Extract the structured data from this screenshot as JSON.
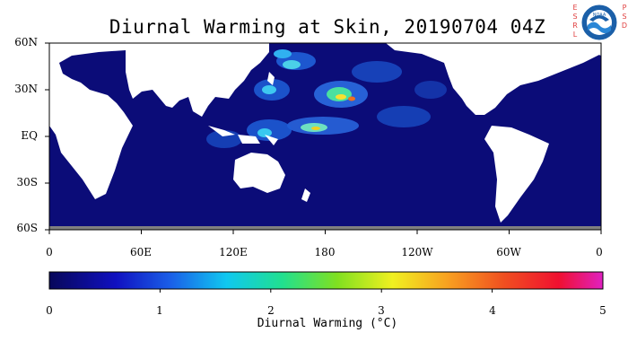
{
  "title": "Diurnal Warming at Skin, 20190704 04Z",
  "logo": {
    "left_letters": "ESRL",
    "right_letters": "PSD",
    "badge_text": "NOAA",
    "colors": {
      "outer": "#1b5fa8",
      "inner": "#2a86d6",
      "ring": "#ffffff"
    }
  },
  "map": {
    "lat_labels": [
      "60N",
      "30N",
      "EQ",
      "30S",
      "60S"
    ],
    "lon_labels": [
      "0",
      "60E",
      "120E",
      "180",
      "120W",
      "60W",
      "0"
    ],
    "colors": {
      "ocean": "#0b0c78",
      "land": "#ffffff",
      "ice": "#808080"
    }
  },
  "colorbar": {
    "ticks": [
      "0",
      "1",
      "2",
      "3",
      "4",
      "5"
    ],
    "label": "Diurnal Warming (°C)",
    "range": [
      0,
      5
    ]
  }
}
